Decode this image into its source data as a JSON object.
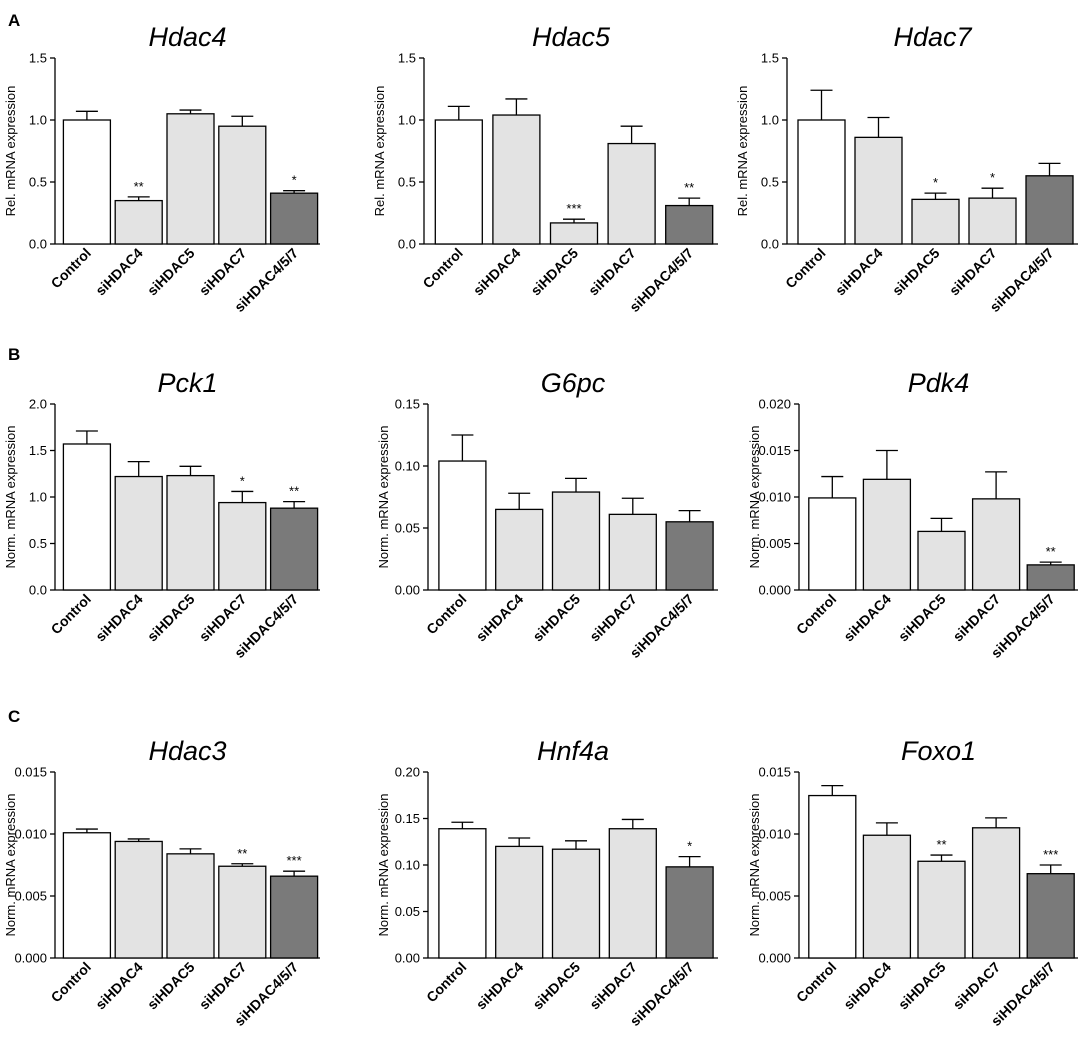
{
  "figure": {
    "panels": [
      {
        "letter": "A"
      },
      {
        "letter": "B"
      },
      {
        "letter": "C"
      }
    ]
  },
  "colors": {
    "control": "#ffffff",
    "single": "#e3e3e3",
    "combo": "#7a7a7a",
    "stroke": "#000000"
  },
  "chart_data": [
    {
      "type": "bar",
      "panel": "A",
      "title": "Hdac4",
      "ylabel": "Rel. mRNA expression",
      "categories": [
        "Control",
        "siHDAC4",
        "siHDAC5",
        "siHDAC7",
        "siHDAC4/5/7"
      ],
      "values": [
        1.0,
        0.35,
        1.05,
        0.95,
        0.41
      ],
      "errors": [
        0.07,
        0.03,
        0.03,
        0.08,
        0.02
      ],
      "significance": [
        "",
        "**",
        "",
        "",
        "*"
      ],
      "ylim": [
        0,
        1.5
      ],
      "yticks": [
        "0.0",
        "0.5",
        "1.0",
        "1.5"
      ]
    },
    {
      "type": "bar",
      "panel": "A",
      "title": "Hdac5",
      "ylabel": "Rel. mRNA expression",
      "categories": [
        "Control",
        "siHDAC4",
        "siHDAC5",
        "siHDAC7",
        "siHDAC4/5/7"
      ],
      "values": [
        1.0,
        1.04,
        0.17,
        0.81,
        0.31
      ],
      "errors": [
        0.11,
        0.13,
        0.03,
        0.14,
        0.06
      ],
      "significance": [
        "",
        "",
        "***",
        "",
        "**"
      ],
      "ylim": [
        0,
        1.5
      ],
      "yticks": [
        "0.0",
        "0.5",
        "1.0",
        "1.5"
      ]
    },
    {
      "type": "bar",
      "panel": "A",
      "title": "Hdac7",
      "ylabel": "Rel. mRNA expression",
      "categories": [
        "Control",
        "siHDAC4",
        "siHDAC5",
        "siHDAC7",
        "siHDAC4/5/7"
      ],
      "values": [
        1.0,
        0.86,
        0.36,
        0.37,
        0.55
      ],
      "errors": [
        0.24,
        0.16,
        0.05,
        0.08,
        0.1
      ],
      "significance": [
        "",
        "",
        "*",
        "*",
        ""
      ],
      "ylim": [
        0,
        1.5
      ],
      "yticks": [
        "0.0",
        "0.5",
        "1.0",
        "1.5"
      ]
    },
    {
      "type": "bar",
      "panel": "B",
      "title": "Pck1",
      "ylabel": "Norm. mRNA expression",
      "categories": [
        "Control",
        "siHDAC4",
        "siHDAC5",
        "siHDAC7",
        "siHDAC4/5/7"
      ],
      "values": [
        1.57,
        1.22,
        1.23,
        0.94,
        0.88
      ],
      "errors": [
        0.14,
        0.16,
        0.1,
        0.12,
        0.07
      ],
      "significance": [
        "",
        "",
        "",
        "*",
        "**"
      ],
      "ylim": [
        0,
        2.0
      ],
      "yticks": [
        "0.0",
        "0.5",
        "1.0",
        "1.5",
        "2.0"
      ]
    },
    {
      "type": "bar",
      "panel": "B",
      "title": "G6pc",
      "ylabel": "Norm. mRNA expression",
      "categories": [
        "Control",
        "siHDAC4",
        "siHDAC5",
        "siHDAC7",
        "siHDAC4/5/7"
      ],
      "values": [
        0.104,
        0.065,
        0.079,
        0.061,
        0.055
      ],
      "errors": [
        0.021,
        0.013,
        0.011,
        0.013,
        0.009
      ],
      "significance": [
        "",
        "",
        "",
        "",
        ""
      ],
      "ylim": [
        0,
        0.15
      ],
      "yticks": [
        "0.00",
        "0.05",
        "0.10",
        "0.15"
      ]
    },
    {
      "type": "bar",
      "panel": "B",
      "title": "Pdk4",
      "ylabel": "Norm. mRNA expression",
      "categories": [
        "Control",
        "siHDAC4",
        "siHDAC5",
        "siHDAC7",
        "siHDAC4/5/7"
      ],
      "values": [
        0.0099,
        0.0119,
        0.0063,
        0.0098,
        0.0027
      ],
      "errors": [
        0.0023,
        0.0031,
        0.0014,
        0.0029,
        0.0003
      ],
      "significance": [
        "",
        "",
        "",
        "",
        "**"
      ],
      "ylim": [
        0,
        0.02
      ],
      "yticks": [
        "0.000",
        "0.005",
        "0.010",
        "0.015",
        "0.020"
      ]
    },
    {
      "type": "bar",
      "panel": "C",
      "title": "Hdac3",
      "ylabel": "Norm. mRNA expression",
      "categories": [
        "Control",
        "siHDAC4",
        "siHDAC5",
        "siHDAC7",
        "siHDAC4/5/7"
      ],
      "values": [
        0.0101,
        0.0094,
        0.0084,
        0.0074,
        0.0066
      ],
      "errors": [
        0.0003,
        0.0002,
        0.0004,
        0.0002,
        0.0004
      ],
      "significance": [
        "",
        "",
        "",
        "**",
        "***"
      ],
      "ylim": [
        0,
        0.015
      ],
      "yticks": [
        "0.000",
        "0.005",
        "0.010",
        "0.015"
      ]
    },
    {
      "type": "bar",
      "panel": "C",
      "title": "Hnf4a",
      "ylabel": "Norm. mRNA expression",
      "categories": [
        "Control",
        "siHDAC4",
        "siHDAC5",
        "siHDAC7",
        "siHDAC4/5/7"
      ],
      "values": [
        0.139,
        0.12,
        0.117,
        0.139,
        0.098
      ],
      "errors": [
        0.007,
        0.009,
        0.009,
        0.01,
        0.011
      ],
      "significance": [
        "",
        "",
        "",
        "",
        "*"
      ],
      "ylim": [
        0,
        0.2
      ],
      "yticks": [
        "0.00",
        "0.05",
        "0.10",
        "0.15",
        "0.20"
      ]
    },
    {
      "type": "bar",
      "panel": "C",
      "title": "Foxo1",
      "ylabel": "Norm. mRNA expression",
      "categories": [
        "Control",
        "siHDAC4",
        "siHDAC5",
        "siHDAC7",
        "siHDAC4/5/7"
      ],
      "values": [
        0.0131,
        0.0099,
        0.0078,
        0.0105,
        0.0068
      ],
      "errors": [
        0.0008,
        0.001,
        0.0005,
        0.0008,
        0.0007
      ],
      "significance": [
        "",
        "",
        "**",
        "",
        "***"
      ],
      "ylim": [
        0,
        0.015
      ],
      "yticks": [
        "0.000",
        "0.005",
        "0.010",
        "0.015"
      ]
    }
  ]
}
